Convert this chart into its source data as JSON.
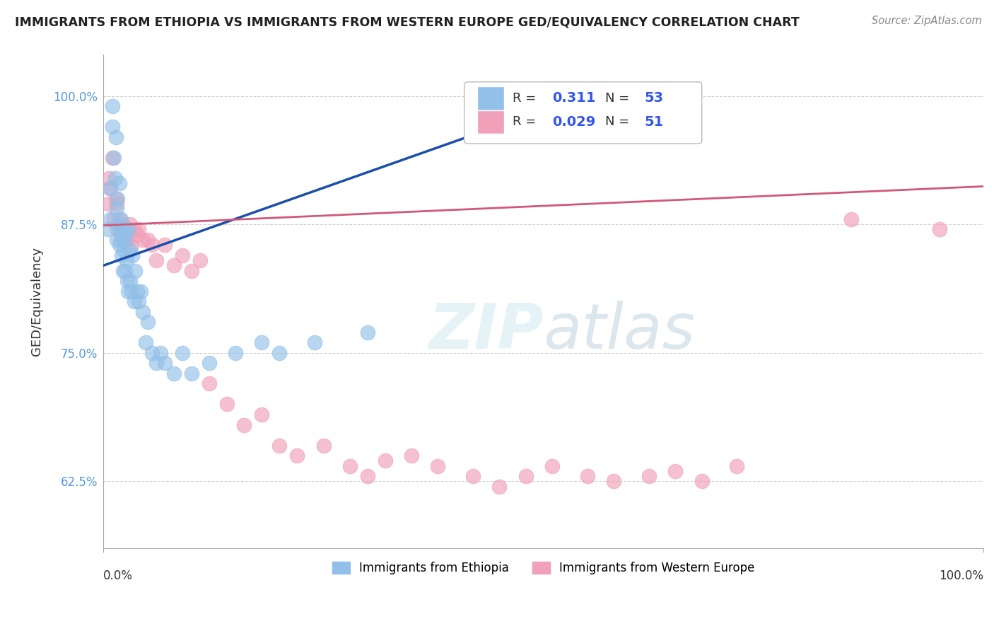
{
  "title": "IMMIGRANTS FROM ETHIOPIA VS IMMIGRANTS FROM WESTERN EUROPE GED/EQUIVALENCY CORRELATION CHART",
  "source": "Source: ZipAtlas.com",
  "ylabel": "GED/Equivalency",
  "ytick_labels": [
    "62.5%",
    "75.0%",
    "87.5%",
    "100.0%"
  ],
  "ytick_values": [
    0.625,
    0.75,
    0.875,
    1.0
  ],
  "xlim": [
    0.0,
    1.0
  ],
  "ylim": [
    0.56,
    1.04
  ],
  "legend1_R": "0.311",
  "legend1_N": "53",
  "legend2_R": "0.029",
  "legend2_N": "51",
  "legend_label1": "Immigrants from Ethiopia",
  "legend_label2": "Immigrants from Western Europe",
  "blue_color": "#92C0E8",
  "pink_color": "#F0A0B8",
  "blue_line_color": "#1A4FAA",
  "pink_line_color": "#D05878",
  "background_color": "#FFFFFF",
  "grid_color": "#CCCCCC",
  "blue_scatter_x": [
    0.005,
    0.007,
    0.008,
    0.01,
    0.01,
    0.012,
    0.013,
    0.014,
    0.015,
    0.015,
    0.016,
    0.017,
    0.018,
    0.018,
    0.019,
    0.02,
    0.02,
    0.021,
    0.022,
    0.022,
    0.023,
    0.024,
    0.025,
    0.025,
    0.026,
    0.027,
    0.028,
    0.028,
    0.03,
    0.03,
    0.032,
    0.033,
    0.035,
    0.036,
    0.038,
    0.04,
    0.042,
    0.045,
    0.048,
    0.05,
    0.055,
    0.06,
    0.065,
    0.07,
    0.08,
    0.09,
    0.1,
    0.12,
    0.15,
    0.18,
    0.2,
    0.24,
    0.3
  ],
  "blue_scatter_y": [
    0.87,
    0.91,
    0.88,
    0.97,
    0.99,
    0.94,
    0.92,
    0.96,
    0.86,
    0.89,
    0.9,
    0.875,
    0.855,
    0.915,
    0.87,
    0.86,
    0.88,
    0.845,
    0.87,
    0.83,
    0.85,
    0.86,
    0.83,
    0.865,
    0.84,
    0.82,
    0.81,
    0.87,
    0.82,
    0.85,
    0.81,
    0.845,
    0.8,
    0.83,
    0.81,
    0.8,
    0.81,
    0.79,
    0.76,
    0.78,
    0.75,
    0.74,
    0.75,
    0.74,
    0.73,
    0.75,
    0.73,
    0.74,
    0.75,
    0.76,
    0.75,
    0.76,
    0.77
  ],
  "pink_scatter_x": [
    0.005,
    0.006,
    0.008,
    0.01,
    0.012,
    0.014,
    0.015,
    0.016,
    0.018,
    0.02,
    0.022,
    0.025,
    0.028,
    0.03,
    0.032,
    0.035,
    0.038,
    0.04,
    0.045,
    0.05,
    0.055,
    0.06,
    0.07,
    0.08,
    0.09,
    0.1,
    0.11,
    0.12,
    0.14,
    0.16,
    0.18,
    0.2,
    0.22,
    0.25,
    0.28,
    0.3,
    0.32,
    0.35,
    0.38,
    0.42,
    0.45,
    0.48,
    0.51,
    0.55,
    0.58,
    0.62,
    0.65,
    0.68,
    0.72,
    0.85,
    0.95
  ],
  "pink_scatter_y": [
    0.895,
    0.92,
    0.91,
    0.94,
    0.88,
    0.9,
    0.895,
    0.87,
    0.88,
    0.865,
    0.875,
    0.86,
    0.86,
    0.875,
    0.855,
    0.87,
    0.865,
    0.87,
    0.86,
    0.86,
    0.855,
    0.84,
    0.855,
    0.835,
    0.845,
    0.83,
    0.84,
    0.72,
    0.7,
    0.68,
    0.69,
    0.66,
    0.65,
    0.66,
    0.64,
    0.63,
    0.645,
    0.65,
    0.64,
    0.63,
    0.62,
    0.63,
    0.64,
    0.63,
    0.625,
    0.63,
    0.635,
    0.625,
    0.64,
    0.88,
    0.87
  ]
}
